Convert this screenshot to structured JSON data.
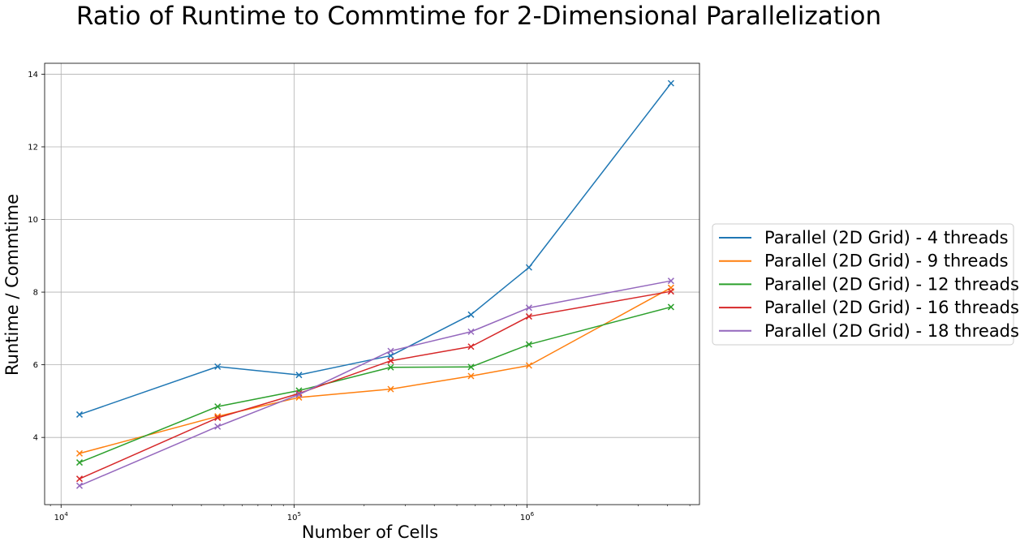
{
  "chart_data": {
    "type": "line",
    "title": "Ratio of Runtime to Commtime for 2-Dimensional Parallelization",
    "xlabel": "Number of Cells",
    "ylabel": "Runtime / Commtime",
    "x_scale": "log",
    "xlim": [
      8500,
      5500000
    ],
    "ylim": [
      2.15,
      14.3
    ],
    "x_ticks": [
      {
        "value": 10000,
        "base": "10",
        "exponent": "4"
      },
      {
        "value": 100000,
        "base": "10",
        "exponent": "5"
      },
      {
        "value": 1000000,
        "base": "10",
        "exponent": "6"
      }
    ],
    "y_ticks": [
      4,
      6,
      8,
      10,
      12,
      14
    ],
    "grid": true,
    "legend_position": "outside-right",
    "marker": "x",
    "x": [
      12000,
      47000,
      105000,
      260000,
      575000,
      1020000,
      4150000
    ],
    "series": [
      {
        "name": "Parallel (2D Grid) - 4 threads",
        "color": "#1f77b4",
        "values": [
          4.63,
          5.95,
          5.72,
          6.25,
          7.38,
          8.68,
          13.75
        ]
      },
      {
        "name": "Parallel (2D Grid) - 9 threads",
        "color": "#ff7f0e",
        "values": [
          3.56,
          4.58,
          5.1,
          5.33,
          5.69,
          5.98,
          8.12
        ]
      },
      {
        "name": "Parallel (2D Grid) - 12 threads",
        "color": "#2ca02c",
        "values": [
          3.31,
          4.85,
          5.29,
          5.93,
          5.94,
          6.56,
          7.59
        ]
      },
      {
        "name": "Parallel (2D Grid) - 16 threads",
        "color": "#d62728",
        "values": [
          2.86,
          4.54,
          5.21,
          6.11,
          6.5,
          7.33,
          8.02
        ]
      },
      {
        "name": "Parallel (2D Grid) - 18 threads",
        "color": "#9467bd",
        "values": [
          2.67,
          4.3,
          5.18,
          6.38,
          6.91,
          7.57,
          8.31
        ]
      }
    ]
  }
}
